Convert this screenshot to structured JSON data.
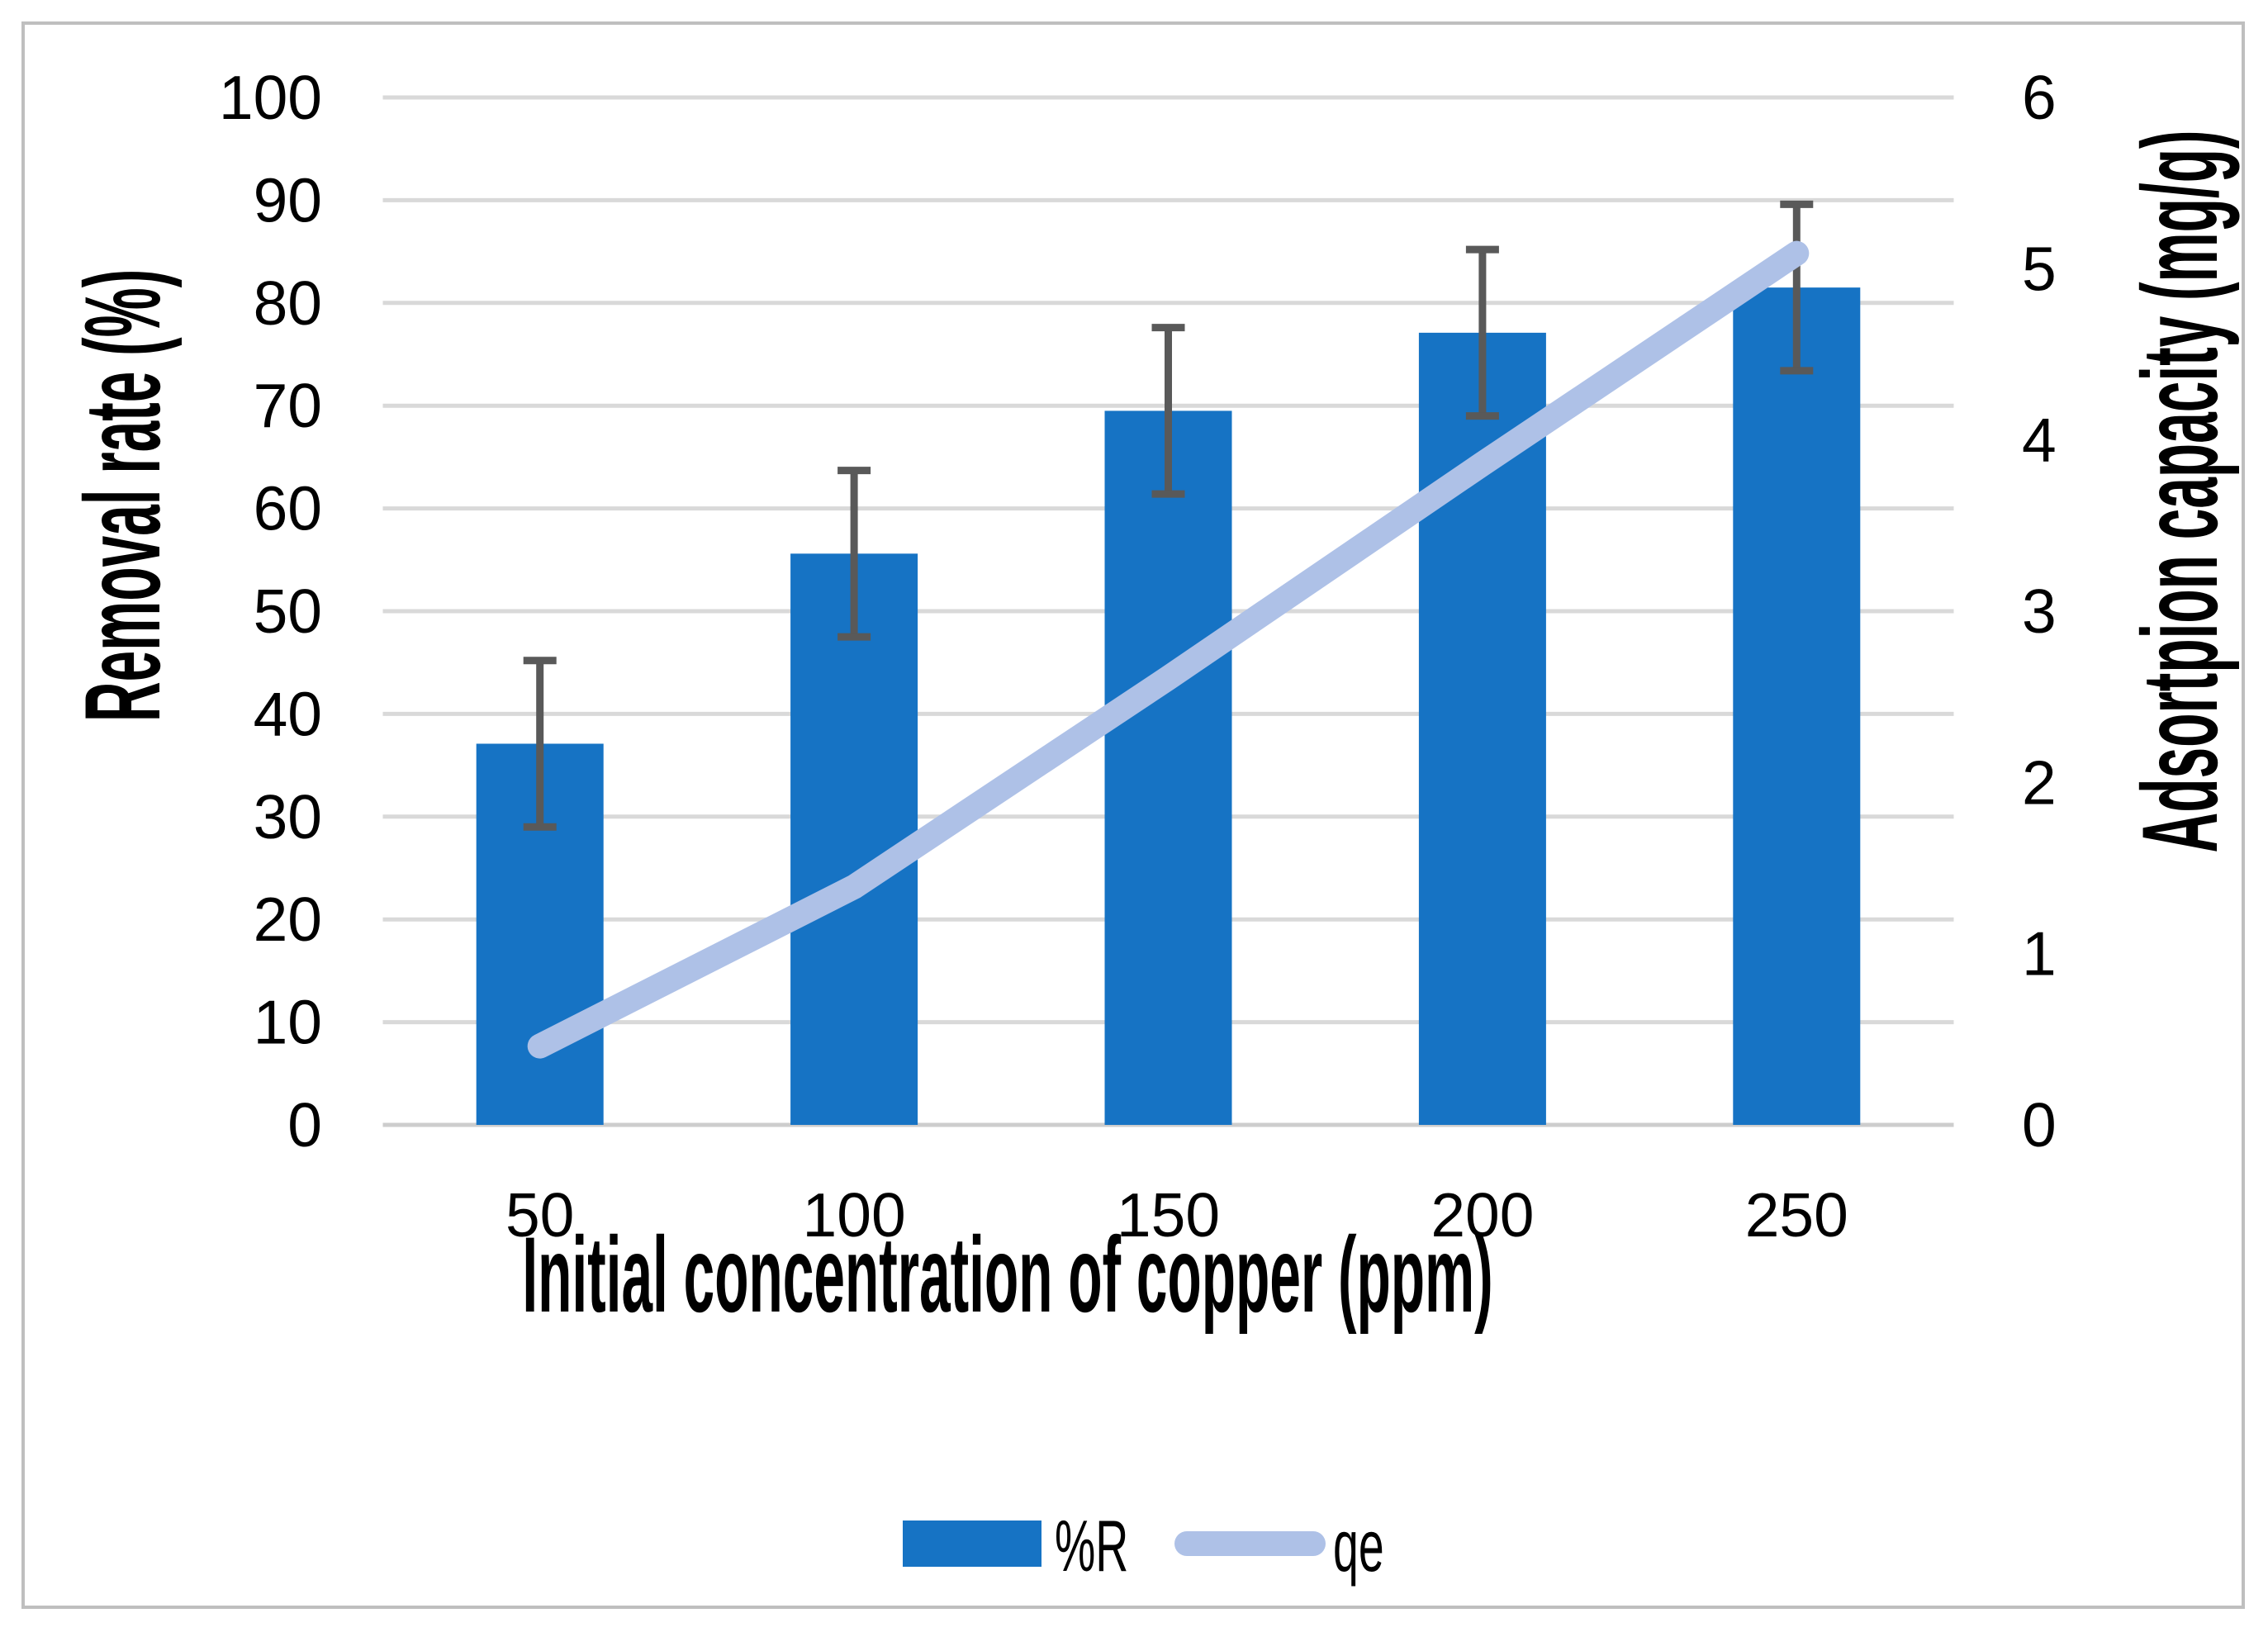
{
  "chart_data": {
    "type": "bar",
    "subtype": "combo-bar-line-dual-axis",
    "categories": [
      "50",
      "100",
      "150",
      "200",
      "250"
    ],
    "series": [
      {
        "name": "%R",
        "type": "bar",
        "axis": "left",
        "values": [
          37.1,
          55.6,
          69.5,
          77.1,
          81.5
        ],
        "error_bars": [
          8.1,
          8.1,
          8.1,
          8.1,
          8.1
        ],
        "color": "#1673C4"
      },
      {
        "name": "qe",
        "type": "line",
        "axis": "right",
        "values": [
          0.46,
          1.39,
          2.61,
          3.86,
          5.09
        ],
        "color": "#AEC1E7"
      }
    ],
    "x_axis": {
      "title": "Initial concentration of copper (ppm)",
      "tick_labels": [
        "50",
        "100",
        "150",
        "200",
        "250"
      ]
    },
    "left_axis": {
      "title": "Removal rate (%)",
      "min": 0,
      "max": 100,
      "tick_step": 10,
      "tick_labels": [
        "0",
        "10",
        "20",
        "30",
        "40",
        "50",
        "60",
        "70",
        "80",
        "90",
        "100"
      ]
    },
    "right_axis": {
      "title": "Adsortpion capacity (mg/g)",
      "min": 0,
      "max": 6,
      "tick_step": 1,
      "tick_labels": [
        "0",
        "1",
        "2",
        "3",
        "4",
        "5",
        "6"
      ]
    },
    "legend": {
      "position": "bottom",
      "entries": [
        "%R",
        "qe"
      ]
    },
    "grid": true,
    "colors": {
      "bar": "#1673C4",
      "line": "#AEC1E7",
      "error_bar": "#595959",
      "gridline": "#D9D9D9",
      "axis_line": "#CDCDCD",
      "border": "#BFBFBF",
      "text": "#000000",
      "background": "#FFFFFF"
    }
  }
}
